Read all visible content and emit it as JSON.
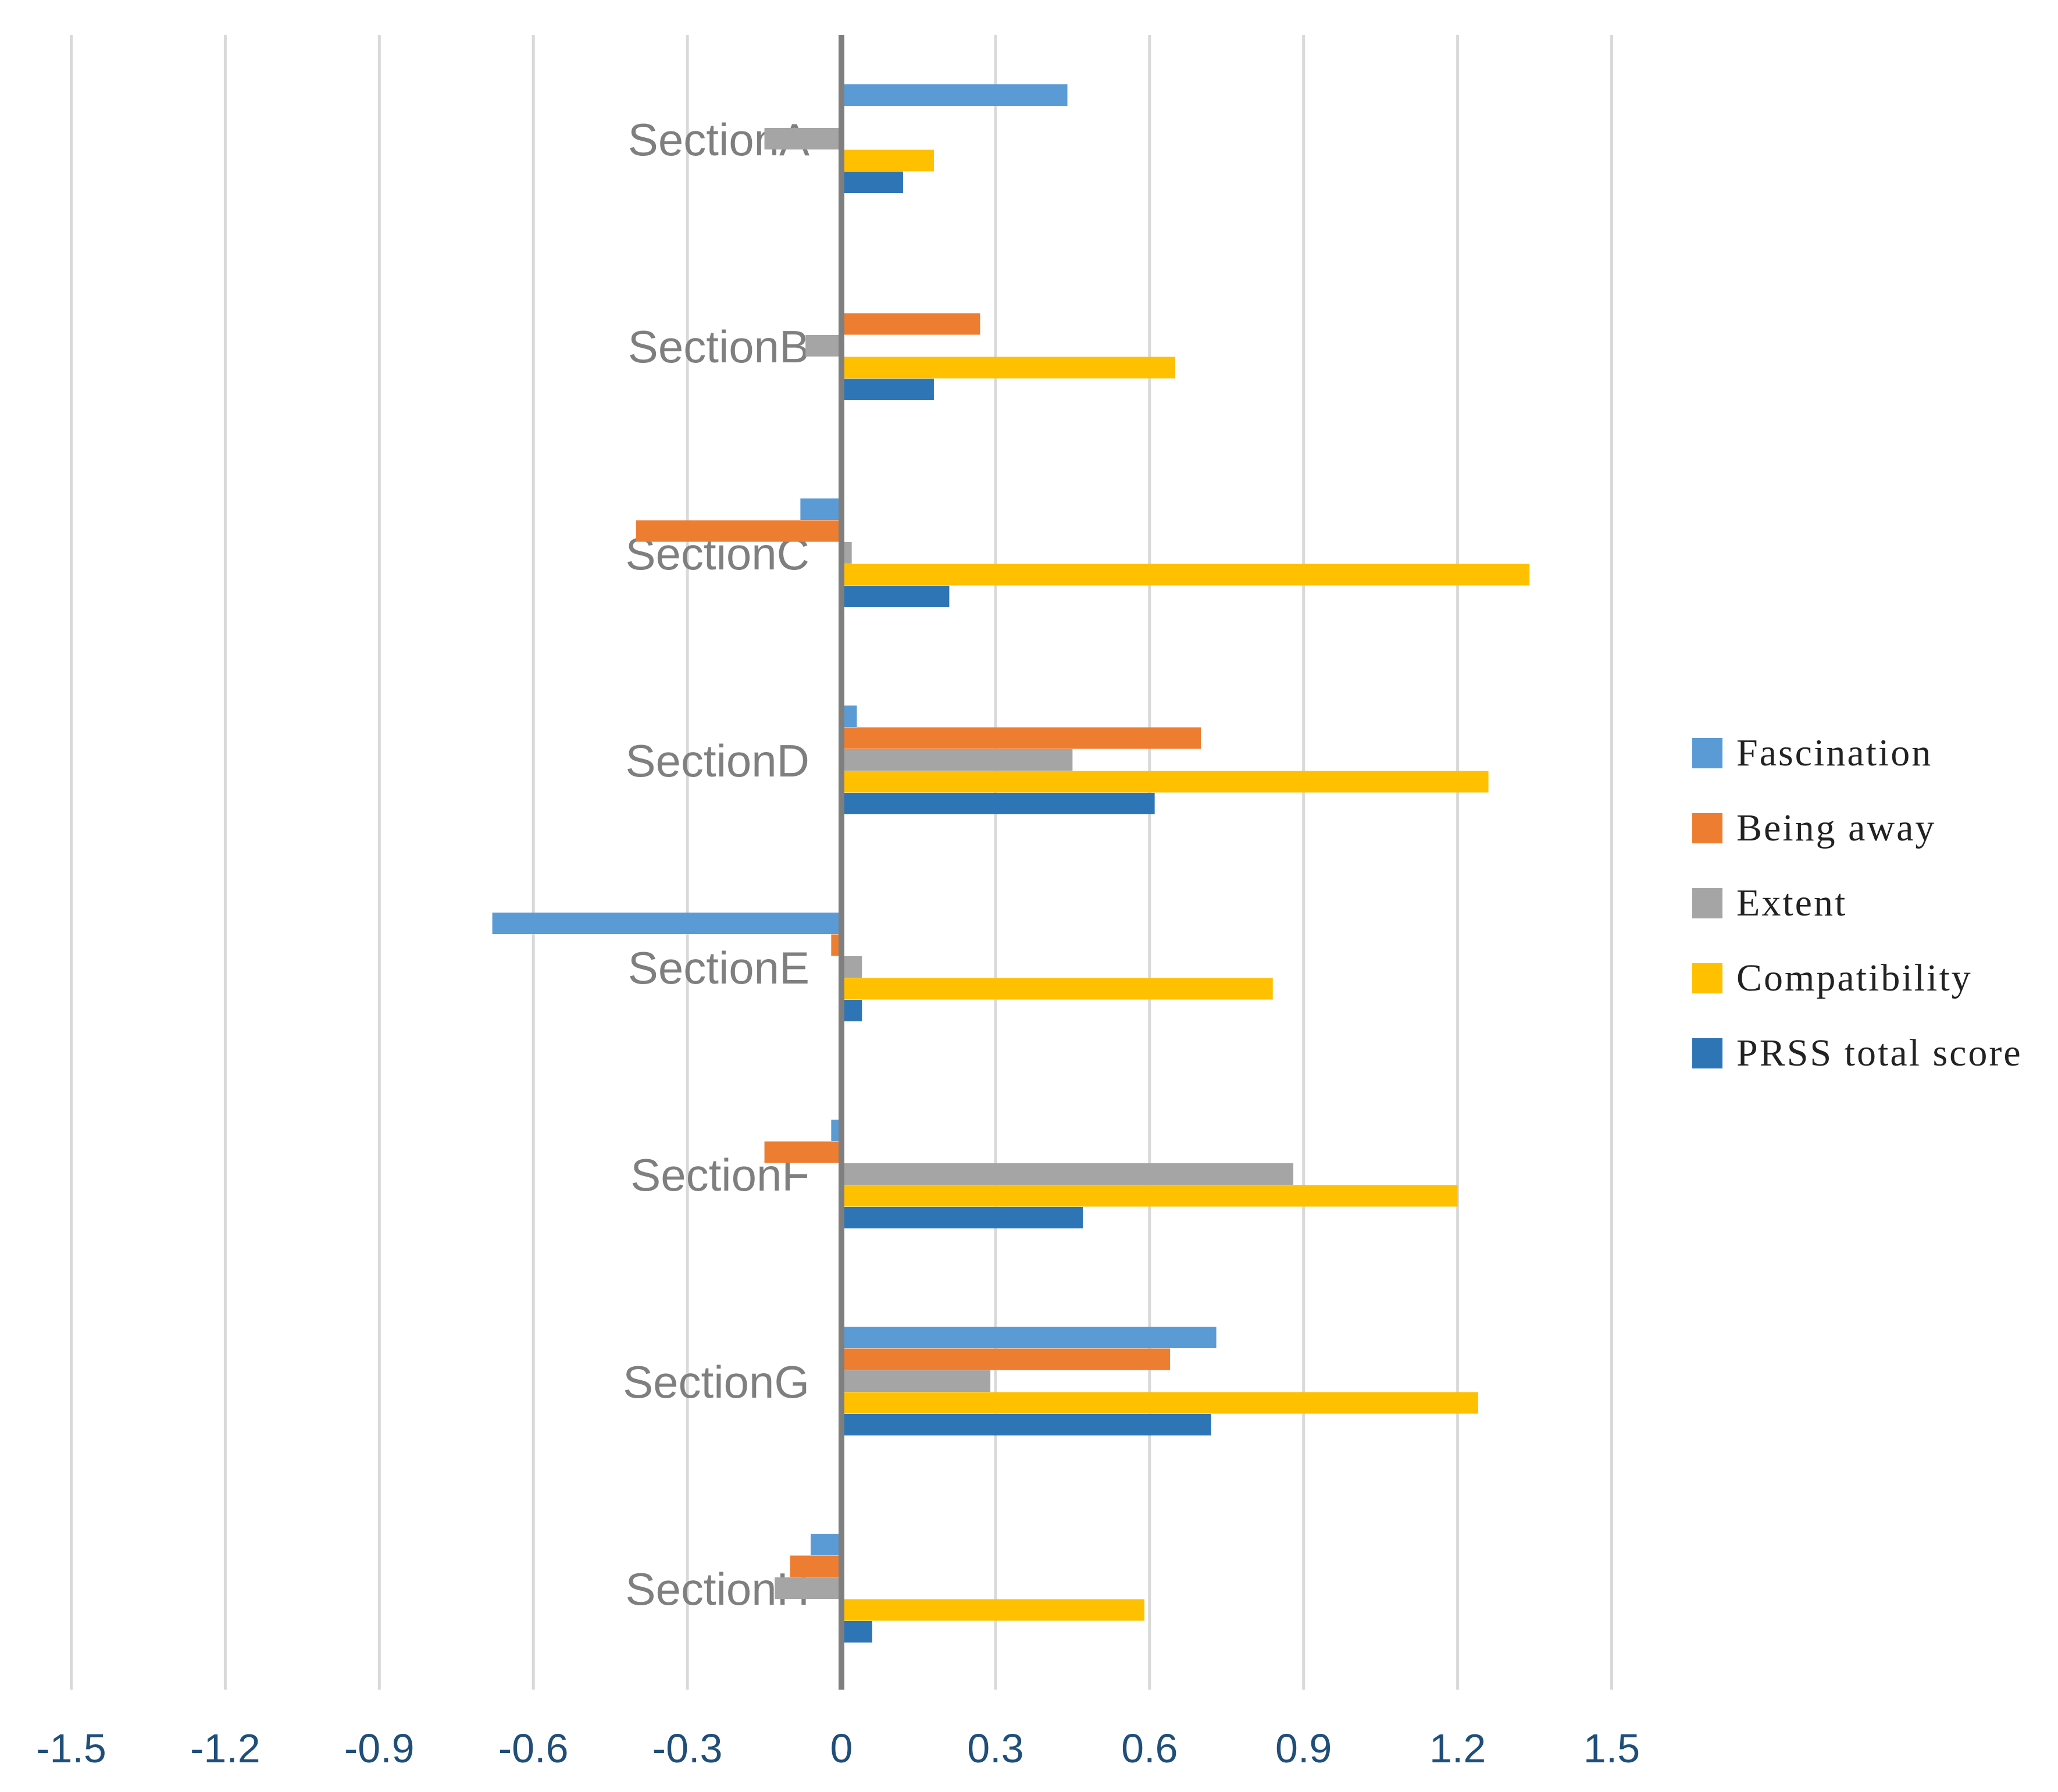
{
  "chart_data": {
    "type": "bar",
    "orientation": "horizontal",
    "title": "",
    "xlabel": "",
    "ylabel": "",
    "xlim": [
      -1.5,
      1.5
    ],
    "x_ticks": [
      "-1.5",
      "-1.2",
      "-0.9",
      "-0.6",
      "-0.3",
      "0",
      "0.3",
      "0.6",
      "0.9",
      "1.2",
      "1.5"
    ],
    "grid": "vertical",
    "legend_position": "right",
    "categories": [
      "SectionA",
      "SectionB",
      "SectionC",
      "SectionD",
      "SectionE",
      "SectionF",
      "SectionG",
      "SectionH"
    ],
    "series": [
      {
        "name": "Fascination",
        "color": "#5b9bd5",
        "values": [
          0.44,
          0.0,
          -0.08,
          0.03,
          -0.68,
          -0.02,
          0.73,
          -0.06
        ]
      },
      {
        "name": "Being away",
        "color": "#ed7d31",
        "values": [
          0.0,
          0.27,
          -0.4,
          0.7,
          -0.02,
          -0.15,
          0.64,
          -0.1
        ]
      },
      {
        "name": "Extent",
        "color": "#a5a5a5",
        "values": [
          -0.15,
          -0.07,
          0.02,
          0.45,
          0.04,
          0.88,
          0.29,
          -0.13
        ]
      },
      {
        "name": "Compatibility",
        "color": "#ffc000",
        "values": [
          0.18,
          0.65,
          1.34,
          1.26,
          0.84,
          1.2,
          1.24,
          0.59
        ]
      },
      {
        "name": "PRSS total score",
        "color": "#2e75b6",
        "values": [
          0.12,
          0.18,
          0.21,
          0.61,
          0.04,
          0.47,
          0.72,
          0.06
        ]
      }
    ]
  }
}
